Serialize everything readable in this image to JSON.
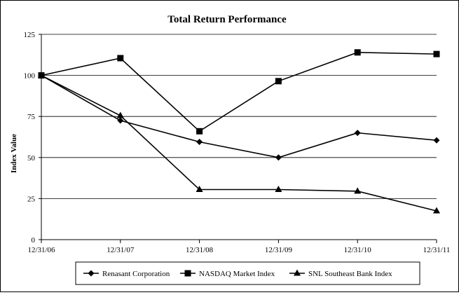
{
  "chart_data": {
    "type": "line",
    "title": "Total Return Performance",
    "xlabel": "",
    "ylabel": "Index Value",
    "x": [
      "12/31/06",
      "12/31/07",
      "12/31/08",
      "12/31/09",
      "12/31/10",
      "12/31/11"
    ],
    "yticks": [
      "0",
      "25",
      "50",
      "75",
      "100",
      "125"
    ],
    "ylim": [
      0,
      125
    ],
    "grid": true,
    "legend_position": "bottom",
    "series": [
      {
        "name": "Renasant Corporation",
        "marker": "diamond",
        "color": "#000000",
        "values": [
          100,
          72.5,
          59.5,
          50,
          65,
          60.5
        ]
      },
      {
        "name": "NASDAQ Market Index",
        "marker": "square",
        "color": "#000000",
        "values": [
          100,
          110.5,
          66,
          96.5,
          114,
          113
        ]
      },
      {
        "name": "SNL Southeast Bank Index",
        "marker": "triangle",
        "color": "#000000",
        "values": [
          100,
          75.5,
          30.5,
          30.5,
          29.5,
          17.5
        ]
      }
    ]
  }
}
